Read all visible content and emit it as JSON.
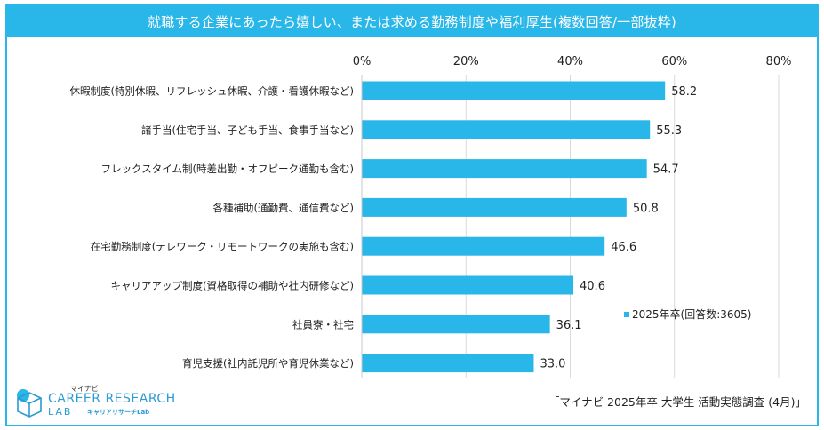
{
  "title": "就職する企業にあったら嬉しい、または求める勤務制度や福利厚生(複数回答/一部抜粋)",
  "source": "「マイナビ 2025年卒 大学生 活動実態調査 (4月)」",
  "logo": {
    "small": "マイナビ",
    "main": "CAREER RESEARCH",
    "lab": "LAB",
    "sub": "キャリアリサーチLab"
  },
  "colors": {
    "accent": "#29b6e8",
    "bar": "#29b6e8",
    "grid": "#d9d9d9"
  },
  "chart_data": {
    "type": "bar",
    "orientation": "horizontal",
    "categories": [
      "休暇制度(特別休暇、リフレッシュ休暇、介護・看護休暇など)",
      "諸手当(住宅手当、子ども手当、食事手当など)",
      "フレックスタイム制(時差出勤・オフピーク通勤も含む)",
      "各種補助(通勤費、通信費など)",
      "在宅勤務制度(テレワーク・リモートワークの実施も含む)",
      "キャリアアップ制度(資格取得の補助や社内研修など)",
      "社員寮・社宅",
      "育児支援(社内託児所や育児休業など)"
    ],
    "series": [
      {
        "name": "2025年卒(回答数:3605)",
        "values": [
          58.2,
          55.3,
          54.7,
          50.8,
          46.6,
          40.6,
          36.1,
          33.0
        ]
      }
    ],
    "value_labels": [
      "58.2",
      "55.3",
      "54.7",
      "50.8",
      "46.6",
      "40.6",
      "36.1",
      "33.0"
    ],
    "xlim": [
      0,
      80
    ],
    "xticks": [
      0,
      20,
      40,
      60,
      80
    ],
    "xtick_labels": [
      "0%",
      "20%",
      "40%",
      "60%",
      "80%"
    ],
    "axis_position": "top",
    "grid": true,
    "legend_position": "lower-right"
  }
}
